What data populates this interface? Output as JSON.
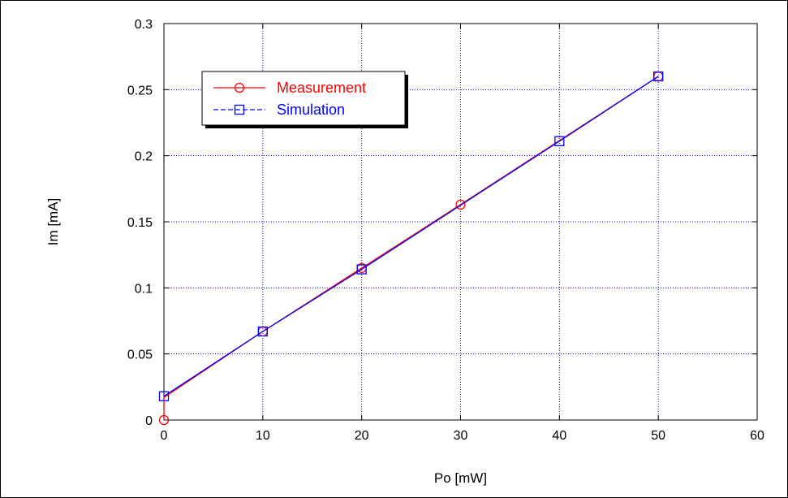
{
  "chart_data": {
    "type": "line",
    "title": "",
    "xlabel": "Po [mW]",
    "ylabel": "Im [mA]",
    "xlim": [
      0,
      60
    ],
    "ylim": [
      0,
      0.3
    ],
    "xticks": [
      "0",
      "10",
      "20",
      "30",
      "40",
      "50",
      "60"
    ],
    "yticks": [
      "0",
      "0.05",
      "0.1",
      "0.15",
      "0.2",
      "0.25",
      "0.3"
    ],
    "grid": true,
    "legend_position": "top-left",
    "series": [
      {
        "name": "Measurement",
        "color": "#ff0000",
        "marker": "circle",
        "x": [
          0,
          0,
          10,
          20,
          30,
          50
        ],
        "y": [
          0,
          0.017,
          0.067,
          0.115,
          0.163,
          0.26
        ]
      },
      {
        "name": "Simulation",
        "color": "#0000ff",
        "marker": "square",
        "x": [
          0,
          10,
          20,
          40,
          50
        ],
        "y": [
          0.018,
          0.067,
          0.114,
          0.211,
          0.26
        ]
      }
    ]
  }
}
